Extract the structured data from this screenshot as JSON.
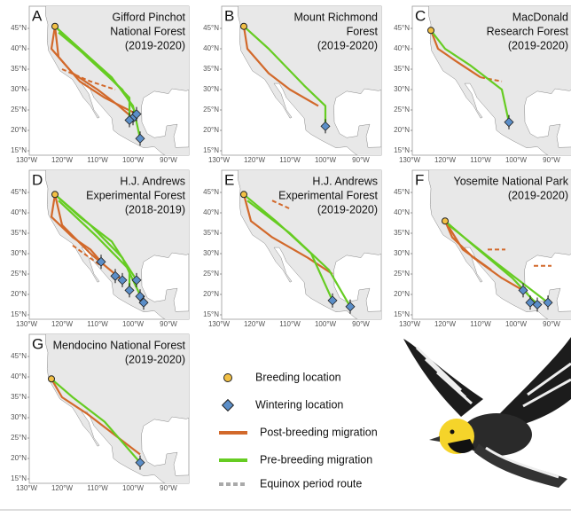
{
  "lat_ticks": [
    "15°N",
    "20°N",
    "25°N",
    "30°N",
    "35°N",
    "40°N",
    "45°N"
  ],
  "lon_ticks": [
    "130°W",
    "120°W",
    "110°W",
    "100°W",
    "90°W"
  ],
  "panels": [
    {
      "letter": "A",
      "title": [
        "Gifford Pinchot",
        "National Forest",
        "(2019-2020)"
      ]
    },
    {
      "letter": "B",
      "title": [
        "Mount Richmond",
        "Forest",
        "(2019-2020)"
      ]
    },
    {
      "letter": "C",
      "title": [
        "MacDonald",
        "Research Forest",
        "(2019-2020)"
      ]
    },
    {
      "letter": "D",
      "title": [
        "H.J. Andrews",
        "Experimental Forest",
        "(2018-2019)"
      ]
    },
    {
      "letter": "E",
      "title": [
        "H.J. Andrews",
        "Experimental Forest",
        "(2019-2020)"
      ]
    },
    {
      "letter": "F",
      "title": [
        "Yosemite National Park",
        "(2019-2020)"
      ]
    },
    {
      "letter": "G",
      "title": [
        "Mendocino National Forest",
        "(2019-2020)"
      ]
    }
  ],
  "legend": [
    "Breeding location",
    "Wintering location",
    "Post-breeding migration",
    "Pre-breeding migration",
    "Equinox period route"
  ]
}
